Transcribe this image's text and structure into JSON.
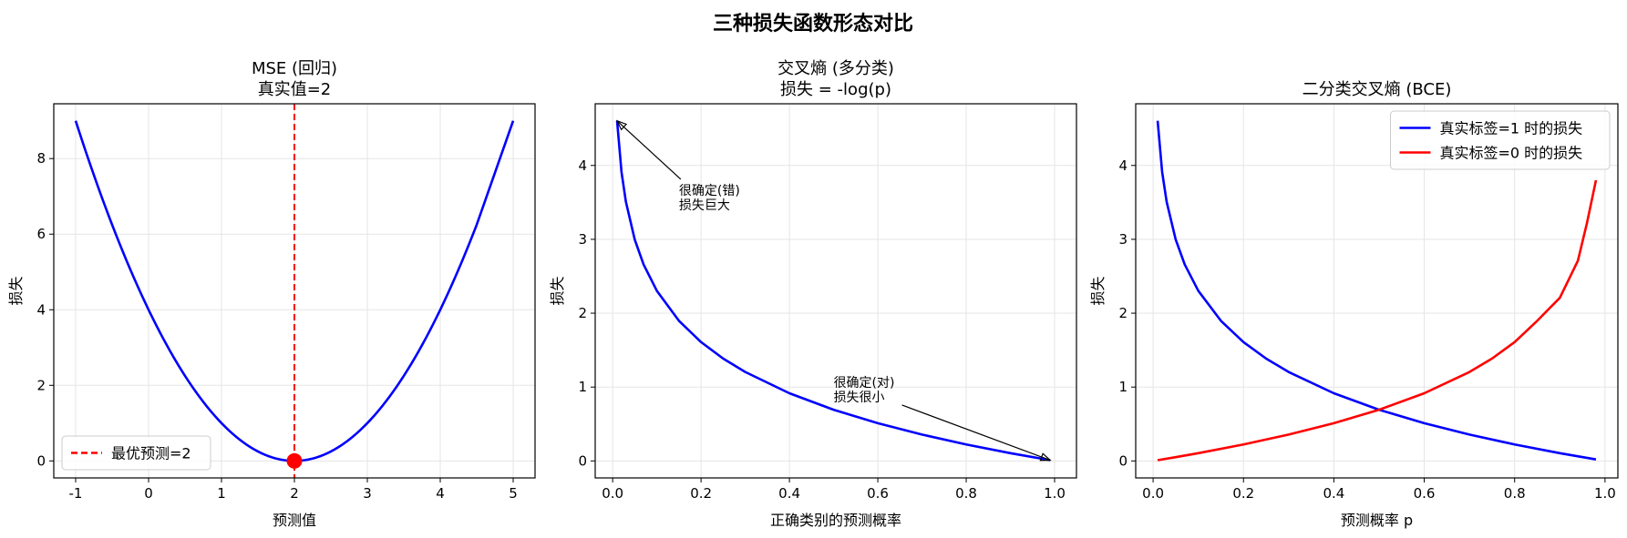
{
  "figure": {
    "title": "三种损失函数形态对比"
  },
  "colors": {
    "blue": "#0000ff",
    "red": "#ff0000",
    "black": "#000000",
    "grid": "#e5e5e5"
  },
  "chart_data": [
    {
      "type": "line",
      "title": "MSE (回归)\n真实值=2",
      "xlabel": "预测值",
      "ylabel": "损失",
      "xlim": [
        -1.3,
        5.3
      ],
      "ylim": [
        -0.45,
        9.45
      ],
      "xticks": [
        -1,
        0,
        1,
        2,
        3,
        4,
        5
      ],
      "yticks": [
        0,
        2,
        4,
        6,
        8
      ],
      "tick_labels_x": [
        "-1",
        "0",
        "1",
        "2",
        "3",
        "4",
        "5"
      ],
      "tick_labels_y": [
        "0",
        "2",
        "4",
        "6",
        "8"
      ],
      "grid": true,
      "series": [
        {
          "color": "#0000ff",
          "x": [
            -1,
            -0.5,
            0,
            0.5,
            1,
            1.5,
            2,
            2.5,
            3,
            3.5,
            4,
            4.5,
            5
          ],
          "y": [
            9,
            6.25,
            4,
            2.25,
            1,
            0.25,
            0,
            0.25,
            1,
            2.25,
            4,
            6.25,
            9
          ]
        }
      ],
      "vline": {
        "x": 2,
        "label": "最优预测=2",
        "color": "#ff0000",
        "style": "dashed"
      },
      "marker": {
        "x": 2,
        "y": 0,
        "color": "#ff0000"
      },
      "legend": {
        "position": "lower-left",
        "entries": [
          {
            "label": "最优预测=2",
            "color": "#ff0000",
            "style": "dashed"
          }
        ]
      }
    },
    {
      "type": "line",
      "title": "交叉熵 (多分类)\n损失 = -log(p)",
      "xlabel": "正确类别的预测概率",
      "ylabel": "损失",
      "xlim": [
        -0.0395,
        1.0495
      ],
      "ylim": [
        -0.23,
        4.835
      ],
      "xticks": [
        0,
        0.2,
        0.4,
        0.6,
        0.8,
        1.0
      ],
      "yticks": [
        0,
        1,
        2,
        3,
        4
      ],
      "tick_labels_x": [
        "0.0",
        "0.2",
        "0.4",
        "0.6",
        "0.8",
        "1.0"
      ],
      "tick_labels_y": [
        "0",
        "1",
        "2",
        "3",
        "4"
      ],
      "grid": true,
      "series": [
        {
          "color": "#0000ff",
          "x": [
            0.01,
            0.02,
            0.03,
            0.05,
            0.07,
            0.1,
            0.15,
            0.2,
            0.25,
            0.3,
            0.4,
            0.5,
            0.6,
            0.7,
            0.8,
            0.9,
            0.99
          ],
          "y": [
            4.605,
            3.912,
            3.507,
            2.996,
            2.659,
            2.303,
            1.897,
            1.609,
            1.386,
            1.204,
            0.916,
            0.693,
            0.511,
            0.357,
            0.223,
            0.105,
            0.01
          ]
        }
      ],
      "annotations": [
        {
          "text": [
            "很确定(错)",
            "损失巨大"
          ],
          "color": "#ff0000",
          "text_xy": [
            0.15,
            3.8
          ],
          "point_xy": [
            0.01,
            4.605
          ]
        },
        {
          "text": [
            "很确定(对)",
            "损失很小"
          ],
          "color": "#000000",
          "text_xy": [
            0.5,
            1.2
          ],
          "point_xy": [
            0.99,
            0.01
          ]
        }
      ]
    },
    {
      "type": "line",
      "title": "二分类交叉熵 (BCE)",
      "xlabel": "预测概率 p",
      "ylabel": "损失",
      "xlim": [
        -0.0385,
        1.0285
      ],
      "ylim": [
        -0.23,
        4.835
      ],
      "xticks": [
        0,
        0.2,
        0.4,
        0.6,
        0.8,
        1.0
      ],
      "yticks": [
        0,
        1,
        2,
        3,
        4
      ],
      "tick_labels_x": [
        "0.0",
        "0.2",
        "0.4",
        "0.6",
        "0.8",
        "1.0"
      ],
      "tick_labels_y": [
        "0",
        "1",
        "2",
        "3",
        "4"
      ],
      "grid": true,
      "series": [
        {
          "name": "真实标签=1 时的损失",
          "color": "#0000ff",
          "x": [
            0.01,
            0.02,
            0.03,
            0.05,
            0.07,
            0.1,
            0.15,
            0.2,
            0.25,
            0.3,
            0.4,
            0.5,
            0.6,
            0.7,
            0.8,
            0.9,
            0.98
          ],
          "y": [
            4.605,
            3.912,
            3.507,
            2.996,
            2.659,
            2.303,
            1.897,
            1.609,
            1.386,
            1.204,
            0.916,
            0.693,
            0.511,
            0.357,
            0.223,
            0.105,
            0.02
          ]
        },
        {
          "name": "真实标签=0 时的损失",
          "color": "#ff0000",
          "x": [
            0.01,
            0.05,
            0.1,
            0.2,
            0.3,
            0.4,
            0.5,
            0.6,
            0.7,
            0.75,
            0.8,
            0.85,
            0.9,
            0.94,
            0.96,
            0.98
          ],
          "y": [
            0.01,
            0.051,
            0.105,
            0.223,
            0.357,
            0.511,
            0.693,
            0.916,
            1.204,
            1.386,
            1.609,
            1.897,
            2.208,
            2.71,
            3.219,
            3.8
          ]
        }
      ],
      "legend": {
        "position": "upper-right",
        "entries": [
          {
            "label": "真实标签=1 时的损失",
            "color": "#0000ff",
            "style": "solid"
          },
          {
            "label": "真实标签=0 时的损失",
            "color": "#ff0000",
            "style": "solid"
          }
        ]
      }
    }
  ]
}
